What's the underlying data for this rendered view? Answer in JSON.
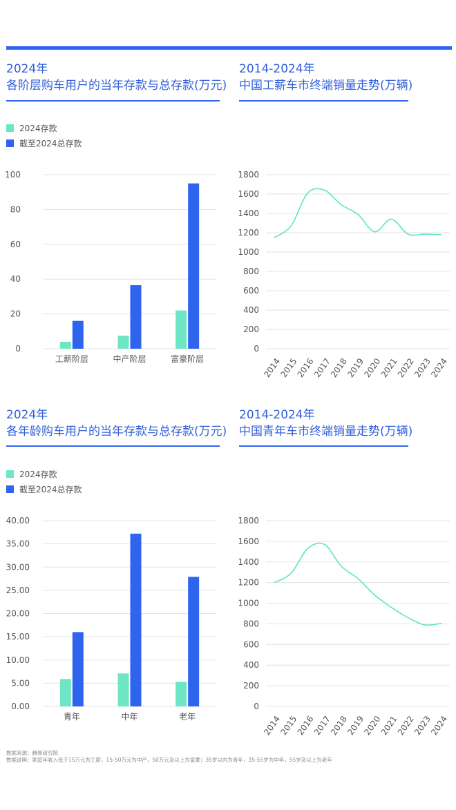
{
  "colors": {
    "accent": "#2f64ef",
    "title": "#2f5fdc",
    "deposit_2024": "#6ee6c6",
    "total_deposit": "#2f64ef",
    "line": "#5ee3c9",
    "grid": "#e3e3e3"
  },
  "panels": {
    "p1": {
      "title_line1": "2024年",
      "title_line2": "各阶层购车用户的当年存款与总存款(万元)"
    },
    "p2": {
      "title_line1": "2014-2024年",
      "title_line2": "中国工薪车市终端销量走势(万辆)"
    },
    "p3": {
      "title_line1": "2024年",
      "title_line2": "各年龄购车用户的当年存款与总存款(万元)"
    },
    "p4": {
      "title_line1": "2014-2024年",
      "title_line2": "中国青年车市终端销量走势(万辆)"
    }
  },
  "legend": {
    "deposit_2024": "2024存款",
    "total_deposit": "截至2024总存款"
  },
  "footer": {
    "source": "数据来源：腾易研究院",
    "note": "数据说明：家庭年收入低于15万元为工薪，15-50万元为中产，50万元及以上为富豪；35岁以内为青年，35-55岁为中年，55岁及以上为老年"
  },
  "chart_data": [
    {
      "type": "bar",
      "title": "各阶层购车用户的当年存款与总存款(万元)",
      "categories": [
        "工薪阶层",
        "中产阶层",
        "富豪阶层"
      ],
      "series": [
        {
          "name": "2024存款",
          "values": [
            4,
            7.5,
            22
          ]
        },
        {
          "name": "截至2024总存款",
          "values": [
            16,
            36.5,
            95
          ]
        }
      ],
      "ylim": [
        0,
        100
      ],
      "yticks": [
        "0",
        "20",
        "40",
        "60",
        "80",
        "100"
      ],
      "grid": true
    },
    {
      "type": "line",
      "title": "中国工薪车市终端销量走势(万辆)",
      "x": [
        "2014",
        "2015",
        "2016",
        "2017",
        "2018",
        "2019",
        "2020",
        "2021",
        "2022",
        "2023",
        "2024"
      ],
      "values": [
        1150,
        1270,
        1610,
        1640,
        1490,
        1390,
        1210,
        1340,
        1185,
        1185,
        1180
      ],
      "ylim": [
        0,
        1800
      ],
      "yticks": [
        "0",
        "200",
        "400",
        "600",
        "800",
        "1000",
        "1200",
        "1400",
        "1600",
        "1800"
      ],
      "grid": true
    },
    {
      "type": "bar",
      "title": "各年龄购车用户的当年存款与总存款(万元)",
      "categories": [
        "青年",
        "中年",
        "老年"
      ],
      "series": [
        {
          "name": "2024存款",
          "values": [
            5.9,
            7.1,
            5.3
          ]
        },
        {
          "name": "截至2024总存款",
          "values": [
            16,
            37.2,
            27.9
          ]
        }
      ],
      "ylim": [
        0,
        40
      ],
      "yticks": [
        "0.00",
        "5.00",
        "10.00",
        "15.00",
        "20.00",
        "25.00",
        "30.00",
        "35.00",
        "40.00"
      ],
      "grid": true
    },
    {
      "type": "line",
      "title": "中国青年车市终端销量走势(万辆)",
      "x": [
        "2014",
        "2015",
        "2016",
        "2017",
        "2018",
        "2019",
        "2020",
        "2021",
        "2022",
        "2023",
        "2024"
      ],
      "values": [
        1200,
        1290,
        1530,
        1570,
        1360,
        1240,
        1080,
        960,
        860,
        790,
        805
      ],
      "ylim": [
        0,
        1800
      ],
      "yticks": [
        "0",
        "200",
        "400",
        "600",
        "800",
        "1000",
        "1200",
        "1400",
        "1600",
        "1800"
      ],
      "grid": true
    }
  ]
}
